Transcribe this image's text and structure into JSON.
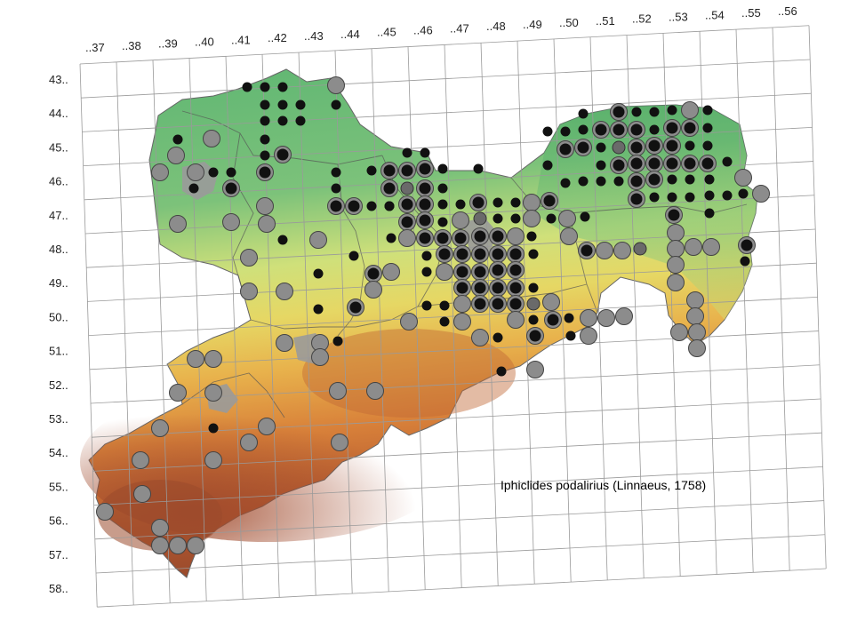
{
  "map": {
    "species_label": "Iphiclides podalirius (Linnaeus, 1758)",
    "column_labels": [
      "..37",
      "..38",
      "..39",
      "..40",
      "..41",
      "..42",
      "..43",
      "..44",
      "..45",
      "..46",
      "..47",
      "..48",
      "..49",
      "..50",
      "..51",
      "..52",
      "..53",
      "..54",
      "..55",
      "..56"
    ],
    "row_labels": [
      "43..",
      "44..",
      "45..",
      "46..",
      "47..",
      "48..",
      "49..",
      "50..",
      "51..",
      "52..",
      "53..",
      "54..",
      "55..",
      "56..",
      "57..",
      "58.."
    ],
    "colors": {
      "lowland_green": "#5fb673",
      "hills_yellow": "#e6d764",
      "upland_orange": "#e09440",
      "mountain_brown": "#a8502e",
      "urban_grey": "#9a9a9a",
      "grid_line": "#9a9a9a",
      "marker_grey": "#8c8c8c",
      "marker_black": "#111111"
    },
    "legend_marker_types": [
      "large-grey-circle",
      "small-black-dot",
      "grey-circle-with-black-dot",
      "dark-grey-dot"
    ]
  }
}
